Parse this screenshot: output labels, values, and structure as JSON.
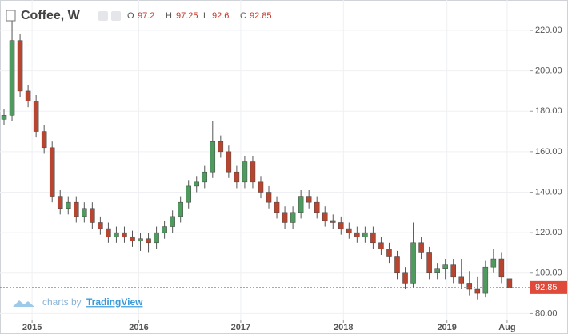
{
  "chart_data": {
    "type": "candlestick",
    "title": "Coffee, W",
    "ohlc_labels": [
      "O",
      "H",
      "L",
      "C"
    ],
    "watermark": {
      "prefix": "charts by",
      "brand": "TradingView"
    },
    "open": [
      176,
      178,
      215,
      190,
      185,
      170,
      162,
      138,
      132,
      135,
      128,
      132,
      125,
      122,
      118,
      120,
      118,
      116,
      117,
      115,
      120,
      123,
      128,
      135,
      143,
      145,
      150,
      165,
      160,
      150,
      145,
      155,
      145,
      140,
      135,
      130,
      125,
      130,
      138,
      135,
      130,
      126,
      125,
      122,
      120,
      118,
      120,
      115,
      112,
      108,
      100,
      95,
      115,
      110,
      100,
      102,
      104,
      98,
      95,
      92,
      90,
      103,
      107,
      97.2
    ],
    "high": [
      181,
      226,
      218,
      193,
      188,
      173,
      165,
      141,
      138,
      138,
      135,
      135,
      128,
      125,
      123,
      123,
      121,
      120,
      120,
      123,
      126,
      131,
      138,
      146,
      148,
      153,
      175,
      168,
      163,
      153,
      158,
      158,
      148,
      143,
      138,
      133,
      133,
      141,
      141,
      138,
      133,
      129,
      128,
      125,
      123,
      123,
      123,
      118,
      115,
      111,
      103,
      125,
      118,
      113,
      105,
      107,
      107,
      107,
      101,
      98,
      106,
      112,
      110,
      97.25
    ],
    "low": [
      173,
      175,
      187,
      182,
      167,
      159,
      135,
      129,
      129,
      125,
      125,
      122,
      119,
      115,
      115,
      115,
      113,
      111,
      110,
      112,
      117,
      120,
      125,
      132,
      140,
      142,
      147,
      157,
      147,
      142,
      142,
      142,
      137,
      132,
      127,
      122,
      122,
      127,
      132,
      127,
      123,
      122,
      119,
      117,
      115,
      115,
      112,
      109,
      105,
      97,
      92,
      93,
      107,
      97,
      97,
      97,
      95,
      92,
      89,
      87,
      88,
      100,
      95,
      92.6
    ],
    "close": [
      178,
      215,
      190,
      185,
      170,
      162,
      138,
      132,
      135,
      128,
      132,
      125,
      122,
      118,
      120,
      118,
      116,
      117,
      115,
      120,
      123,
      128,
      135,
      143,
      145,
      150,
      165,
      160,
      150,
      145,
      155,
      145,
      140,
      135,
      130,
      125,
      130,
      138,
      135,
      130,
      126,
      125,
      122,
      120,
      118,
      120,
      115,
      112,
      108,
      100,
      95,
      115,
      110,
      100,
      102,
      104,
      98,
      95,
      92,
      90,
      103,
      107,
      98,
      92.85
    ],
    "up_color": "#4f9a5f",
    "down_color": "#b8452f",
    "price_line_color": "#e04a3a",
    "xlim": [
      0,
      66
    ],
    "xticks": [
      {
        "value": 4,
        "label": "2015"
      },
      {
        "value": 17.3,
        "label": "2016"
      },
      {
        "value": 30,
        "label": "2017"
      },
      {
        "value": 42.8,
        "label": "2018"
      },
      {
        "value": 55.7,
        "label": "2019"
      },
      {
        "value": 63.2,
        "label": "Aug"
      }
    ],
    "ylim": [
      77,
      235
    ],
    "yticks": [
      {
        "value": 80,
        "label": "80.00"
      },
      {
        "value": 100,
        "label": "100.00"
      },
      {
        "value": 120,
        "label": "120.00"
      },
      {
        "value": 140,
        "label": "140.00"
      },
      {
        "value": 160,
        "label": "160.00"
      },
      {
        "value": 180,
        "label": "180.00"
      },
      {
        "value": 200,
        "label": "200.00"
      },
      {
        "value": 220,
        "label": "220.00"
      }
    ],
    "grid": true
  }
}
